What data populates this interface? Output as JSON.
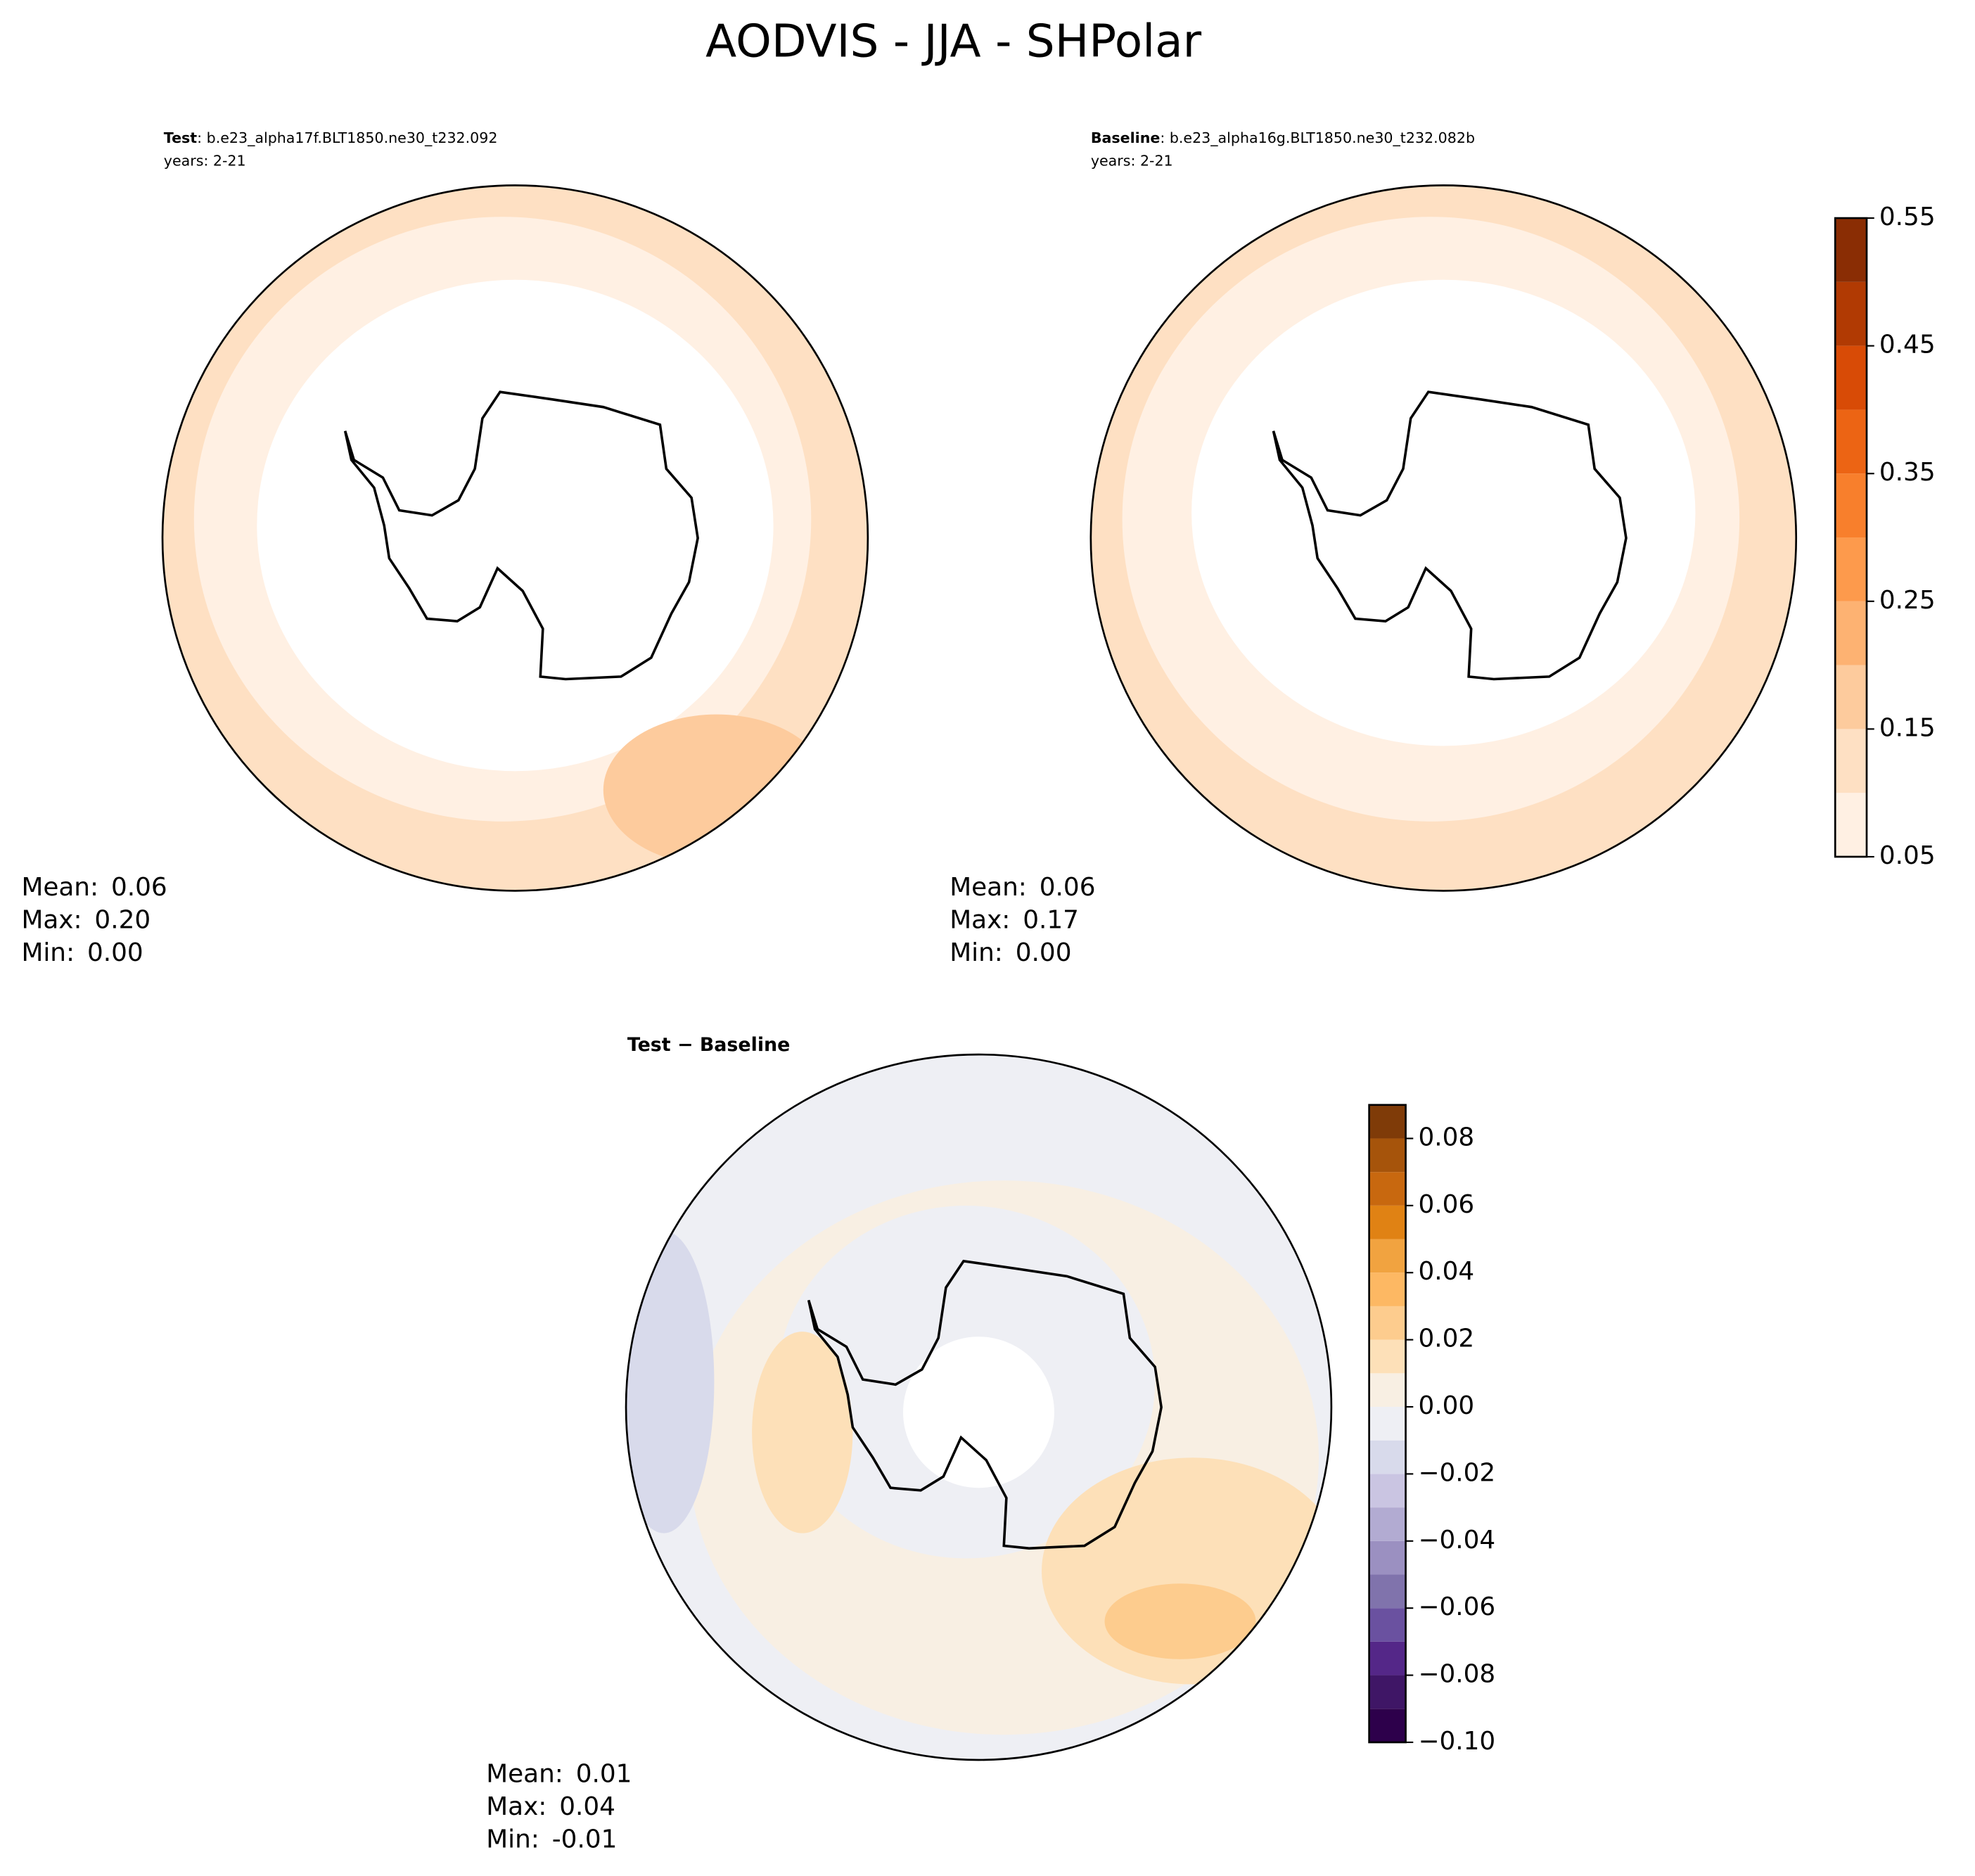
{
  "title": "AODVIS - JJA - SHPolar",
  "panels": [
    {
      "label": "Test",
      "case": ": b.e23_alpha17f.BLT1850.ne30_t232.092",
      "years": "years: 2-21",
      "stats": [
        {
          "name": "Mean:",
          "value": "0.06"
        },
        {
          "name": "Max:",
          "value": "0.20"
        },
        {
          "name": "Min:",
          "value": "0.00"
        }
      ]
    },
    {
      "label": "Baseline",
      "case": ": b.e23_alpha16g.BLT1850.ne30_t232.082b",
      "years": "years: 2-21",
      "stats": [
        {
          "name": "Mean:",
          "value": "0.06"
        },
        {
          "name": "Max:",
          "value": "0.17"
        },
        {
          "name": "Min:",
          "value": "0.00"
        }
      ]
    },
    {
      "label": "Test − Baseline",
      "stats": [
        {
          "name": "Mean:",
          "value": "0.01"
        },
        {
          "name": "Max:",
          "value": "0.04"
        },
        {
          "name": "Min:",
          "value": "-0.01"
        }
      ]
    }
  ],
  "colorbars": [
    {
      "levels": [
        0.05,
        0.1,
        0.15,
        0.2,
        0.25,
        0.3,
        0.35,
        0.4,
        0.45,
        0.5,
        0.55
      ],
      "colors": [
        "#fff0e3",
        "#fee0c3",
        "#fdcb9d",
        "#fdb272",
        "#fd9a4c",
        "#f87f2c",
        "#ec6414",
        "#d84b06",
        "#b13a03",
        "#8a2d04"
      ],
      "ticks": [
        0.05,
        0.15,
        0.25,
        0.35,
        0.45,
        0.55
      ]
    },
    {
      "levels": [
        -0.1,
        -0.09,
        -0.08,
        -0.07,
        -0.06,
        -0.05,
        -0.04,
        -0.03,
        -0.02,
        -0.01,
        0,
        0.01,
        0.02,
        0.03,
        0.04,
        0.05,
        0.06,
        0.07,
        0.08,
        0.09
      ],
      "colors": [
        "#2d004b",
        "#3f1666",
        "#542788",
        "#6a51a0",
        "#8073ac",
        "#9b90c1",
        "#b2abd2",
        "#cac5e2",
        "#d8daeb",
        "#eeeff4",
        "#f8efe3",
        "#fde0b8",
        "#fdcc8e",
        "#fdb863",
        "#f1a340",
        "#e08214",
        "#c8680f",
        "#a6540b",
        "#7f3b08"
      ],
      "ticks": [
        {
          "value": -0.1,
          "label": "−0.10"
        },
        {
          "value": -0.08,
          "label": "−0.08"
        },
        {
          "value": -0.06,
          "label": "−0.06"
        },
        {
          "value": -0.04,
          "label": "−0.04"
        },
        {
          "value": -0.02,
          "label": "−0.02"
        },
        {
          "value": 0,
          "label": "0.00"
        },
        {
          "value": 0.02,
          "label": "0.02"
        },
        {
          "value": 0.04,
          "label": "0.04"
        },
        {
          "value": 0.06,
          "label": "0.06"
        },
        {
          "value": 0.08,
          "label": "0.08"
        }
      ]
    }
  ]
}
